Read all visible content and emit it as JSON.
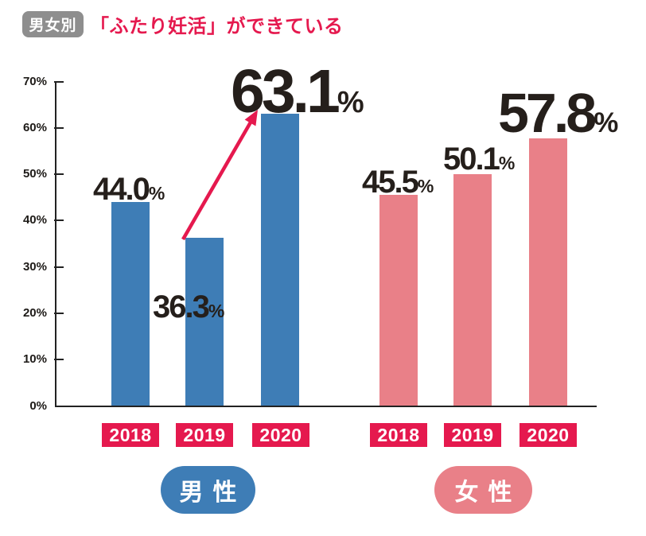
{
  "header": {
    "badge": "男女別",
    "title": "「ふたり妊活」ができている",
    "badge_bg": "#8e8e8e",
    "title_color": "#e5194e"
  },
  "chart_data": {
    "type": "bar",
    "title": "「ふたり妊活」ができている",
    "subtitle_badge": "男女別",
    "categories": [
      "2018",
      "2019",
      "2020"
    ],
    "series": [
      {
        "name": "男性",
        "values": [
          44.0,
          36.3,
          63.1
        ],
        "labels": [
          "44.0",
          "36.3",
          "63.1"
        ],
        "color": "#3e7db6"
      },
      {
        "name": "女性",
        "values": [
          45.5,
          50.1,
          57.8
        ],
        "labels": [
          "45.5",
          "50.1",
          "57.8"
        ],
        "color": "#e98088"
      }
    ],
    "unit": "%",
    "ylim": [
      0,
      70
    ],
    "yticks": [
      "70%",
      "60%",
      "50%",
      "40%",
      "30%",
      "20%",
      "10%",
      "0%"
    ],
    "grid": false,
    "legend_position": "below",
    "annotation": {
      "type": "arrow",
      "from": "男性 2019 (36.3%)",
      "to": "男性 2020 (63.1%)",
      "color": "#e5194e"
    }
  },
  "accent": {
    "crimson": "#e5194e"
  }
}
